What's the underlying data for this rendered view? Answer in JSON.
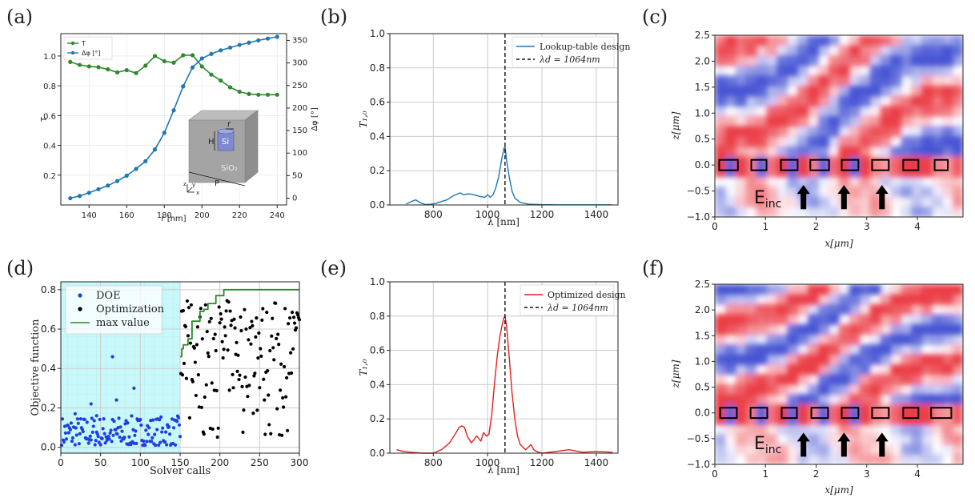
{
  "panels": {
    "a": "(a)",
    "b": "(b)",
    "c": "(c)",
    "d": "(d)",
    "e": "(e)",
    "f": "(f)"
  },
  "colors": {
    "green": "#2c8a2c",
    "blue": "#1f77b4",
    "red": "#e02020",
    "doe": "#1f3fe0",
    "opt": "#000000",
    "doe_bg": "#c8f8fa",
    "field_pos": "#e8202a",
    "field_neg": "#2a3acd"
  },
  "inset": {
    "r": "r",
    "h": "H",
    "si": "Si",
    "p": "P",
    "sio2": "SiO₂",
    "ax_z": "z",
    "ax_y": "y",
    "ax_x": "x"
  },
  "field_labels": {
    "einc_main": "E",
    "einc_sub": "inc"
  },
  "chart_data": [
    {
      "id": "a",
      "type": "line",
      "xlabel": "r [nm]",
      "ylabel": "T",
      "y2label": "Δφ [°]",
      "xlim": [
        125,
        245
      ],
      "ylim": [
        0,
        1.15
      ],
      "y2lim": [
        -15,
        365
      ],
      "xticks": [
        140,
        160,
        180,
        200,
        220,
        240
      ],
      "yticks": [
        0.2,
        0.4,
        0.6,
        0.8,
        1.0
      ],
      "yticklabels": [
        "0.2",
        "0.4",
        "0.6",
        "0.8",
        "1.0"
      ],
      "y2ticks": [
        0,
        50,
        100,
        150,
        200,
        250,
        300,
        350
      ],
      "legend_position": "top-left",
      "x": [
        130,
        135,
        140,
        145,
        150,
        155,
        160,
        165,
        170,
        175,
        180,
        185,
        190,
        195,
        200,
        205,
        210,
        215,
        220,
        225,
        230,
        235,
        240
      ],
      "series": [
        {
          "name": "T",
          "axis": "left",
          "color": "#2c8a2c",
          "values": [
            0.96,
            0.94,
            0.93,
            0.925,
            0.91,
            0.89,
            0.905,
            0.885,
            0.935,
            1.0,
            0.965,
            0.955,
            1.005,
            1.005,
            0.93,
            0.875,
            0.835,
            0.79,
            0.76,
            0.745,
            0.74,
            0.74,
            0.74
          ]
        },
        {
          "name": "Δφ [°]",
          "axis": "right",
          "color": "#1f77b4",
          "values": [
            0,
            5,
            12,
            20,
            28,
            38,
            50,
            65,
            82,
            108,
            145,
            195,
            248,
            290,
            310,
            320,
            328,
            334,
            340,
            345,
            350,
            354,
            358
          ]
        }
      ]
    },
    {
      "id": "b",
      "type": "line",
      "xlabel": "λ [nm]",
      "ylabel": "T₁,₀",
      "xlim": [
        640,
        1480
      ],
      "ylim": [
        0,
        1.0
      ],
      "xticks": [
        800,
        1000,
        1200,
        1400
      ],
      "yticks": [
        0.0,
        0.2,
        0.4,
        0.6,
        0.8,
        1.0
      ],
      "yticklabels": [
        "0.0",
        "0.2",
        "0.4",
        "0.6",
        "0.8",
        "1.0"
      ],
      "legend_position": "top-right",
      "vline": {
        "x": 1064,
        "label": "λd = 1064nm"
      },
      "series": [
        {
          "name": "Lookup-table design",
          "color": "#1f77b4",
          "x": [
            700,
            720,
            735,
            750,
            770,
            790,
            810,
            830,
            850,
            870,
            890,
            900,
            910,
            930,
            950,
            970,
            990,
            1000,
            1010,
            1020,
            1030,
            1040,
            1050,
            1060,
            1064,
            1070,
            1080,
            1090,
            1100,
            1120,
            1150,
            1200,
            1250,
            1300,
            1350,
            1400,
            1460
          ],
          "y": [
            0.005,
            0.02,
            0.03,
            0.015,
            0.003,
            0.004,
            0.01,
            0.02,
            0.03,
            0.05,
            0.065,
            0.07,
            0.06,
            0.065,
            0.06,
            0.05,
            0.045,
            0.06,
            0.045,
            0.06,
            0.1,
            0.16,
            0.25,
            0.33,
            0.34,
            0.26,
            0.16,
            0.08,
            0.04,
            0.015,
            0.005,
            0.002,
            0.001,
            0.001,
            0.001,
            0.001,
            0.001
          ]
        }
      ]
    },
    {
      "id": "c",
      "type": "heatmap",
      "xlabel": "x[μm]",
      "ylabel": "z[μm]",
      "xlim": [
        0,
        4.9
      ],
      "ylim": [
        -1.0,
        2.5
      ],
      "xticks": [
        0,
        1,
        2,
        3,
        4
      ],
      "yticks": [
        -1.0,
        -0.5,
        0.0,
        0.5,
        1.0,
        1.5,
        2.0,
        2.5
      ],
      "yticklabels": [
        "−1.0",
        "−0.5",
        "0.0",
        "0.5",
        "1.0",
        "1.5",
        "2.0",
        "2.5"
      ],
      "pillars_x": [
        0.27,
        0.87,
        1.47,
        2.07,
        2.67,
        3.27,
        3.87,
        4.47
      ],
      "pillar_width": [
        0.37,
        0.3,
        0.33,
        0.37,
        0.33,
        0.33,
        0.3,
        0.26
      ],
      "arrows_x": [
        1.75,
        2.55,
        3.3
      ]
    },
    {
      "id": "d",
      "type": "scatter",
      "xlabel": "Solver calls",
      "ylabel": "Objective function",
      "xlim": [
        0,
        300
      ],
      "ylim": [
        -0.03,
        0.84
      ],
      "xticks": [
        0,
        50,
        100,
        150,
        200,
        250,
        300
      ],
      "yticks": [
        0.0,
        0.2,
        0.4,
        0.6,
        0.8
      ],
      "yticklabels": [
        "0.0",
        "0.2",
        "0.4",
        "0.6",
        "0.8"
      ],
      "legend_position": "top-left",
      "doe_region": [
        0,
        150
      ],
      "series": [
        {
          "name": "DOE",
          "color": "#1f3fe0",
          "n": 150,
          "x_range": [
            1,
            150
          ],
          "y_range": [
            0.01,
            0.16
          ],
          "outliers": [
            [
              65,
              0.46
            ],
            [
              92,
              0.3
            ],
            [
              38,
              0.22
            ],
            [
              70,
              0.24
            ],
            [
              18,
              0.17
            ],
            [
              45,
              0.16
            ]
          ]
        },
        {
          "name": "Optimization",
          "color": "#000000",
          "n": 150,
          "x_range": [
            151,
            300
          ],
          "y_range": [
            0.05,
            0.78
          ]
        },
        {
          "name": "max value",
          "color": "#2c8a2c",
          "x": [
            150,
            152,
            154,
            160,
            165,
            175,
            180,
            185,
            195,
            200,
            205,
            300
          ],
          "y": [
            0.46,
            0.5,
            0.52,
            0.55,
            0.64,
            0.69,
            0.7,
            0.73,
            0.77,
            0.77,
            0.8,
            0.8
          ]
        }
      ]
    },
    {
      "id": "e",
      "type": "line",
      "xlabel": "λ [nm]",
      "ylabel": "T₁,₀",
      "xlim": [
        640,
        1480
      ],
      "ylim": [
        0,
        1.0
      ],
      "xticks": [
        800,
        1000,
        1200,
        1400
      ],
      "yticks": [
        0.0,
        0.2,
        0.4,
        0.6,
        0.8,
        1.0
      ],
      "yticklabels": [
        "0.0",
        "0.2",
        "0.4",
        "0.6",
        "0.8",
        "1.0"
      ],
      "legend_position": "top-right",
      "vline": {
        "x": 1064,
        "label": "λd = 1064nm"
      },
      "series": [
        {
          "name": "Optimized design",
          "color": "#e02020",
          "x": [
            665,
            690,
            720,
            760,
            800,
            830,
            860,
            880,
            895,
            905,
            915,
            925,
            940,
            950,
            960,
            975,
            985,
            995,
            1005,
            1015,
            1025,
            1035,
            1045,
            1055,
            1060,
            1064,
            1070,
            1080,
            1090,
            1100,
            1110,
            1120,
            1140,
            1160,
            1170,
            1180,
            1200,
            1250,
            1300,
            1350,
            1400,
            1460
          ],
          "y": [
            0.02,
            0.01,
            0.005,
            0.0,
            0.0,
            0.02,
            0.06,
            0.11,
            0.15,
            0.16,
            0.15,
            0.1,
            0.06,
            0.08,
            0.1,
            0.07,
            0.12,
            0.1,
            0.11,
            0.22,
            0.4,
            0.56,
            0.68,
            0.76,
            0.79,
            0.8,
            0.74,
            0.55,
            0.35,
            0.2,
            0.1,
            0.05,
            0.02,
            0.05,
            0.02,
            0.01,
            0.0,
            0.01,
            0.02,
            0.005,
            0.01,
            0.005
          ]
        }
      ]
    },
    {
      "id": "f",
      "type": "heatmap",
      "xlabel": "x[μm]",
      "ylabel": "z[μm]",
      "xlim": [
        0,
        4.9
      ],
      "ylim": [
        -1.0,
        2.5
      ],
      "xticks": [
        0,
        1,
        2,
        3,
        4
      ],
      "yticks": [
        -1.0,
        -0.5,
        0.0,
        0.5,
        1.0,
        1.5,
        2.0,
        2.5
      ],
      "yticklabels": [
        "−1.0",
        "−0.5",
        "0.0",
        "0.5",
        "1.0",
        "1.5",
        "2.0",
        "2.5"
      ],
      "pillars_x": [
        0.27,
        0.87,
        1.47,
        2.07,
        2.67,
        3.27,
        3.87,
        4.47
      ],
      "pillar_width": [
        0.33,
        0.33,
        0.3,
        0.33,
        0.33,
        0.33,
        0.3,
        0.4
      ],
      "arrows_x": [
        1.75,
        2.55,
        3.3
      ]
    }
  ]
}
